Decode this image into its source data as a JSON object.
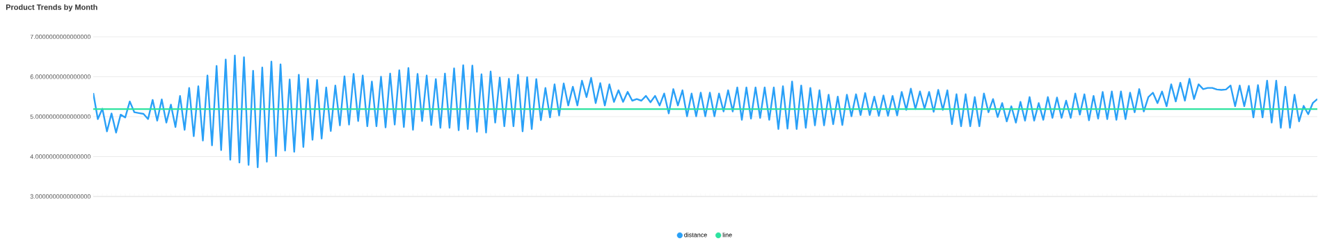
{
  "chart_data": {
    "type": "line",
    "title": "Product Trends by Month",
    "categories": [
      null,
      null,
      null,
      null,
      null,
      null,
      null,
      null,
      null,
      null,
      null,
      null,
      null,
      null,
      null,
      null,
      null,
      null,
      null,
      null,
      null,
      null,
      null,
      null,
      null,
      null,
      null,
      null,
      null,
      null,
      null,
      null,
      null,
      null,
      null,
      null,
      null,
      null,
      null,
      null,
      null,
      null,
      null,
      null,
      null,
      null,
      null,
      null,
      null,
      null,
      null,
      null,
      null,
      null,
      null,
      null,
      null,
      null,
      null,
      null,
      null,
      null,
      null,
      null,
      null,
      null,
      null,
      null,
      null,
      null,
      null,
      null,
      null,
      null,
      null,
      null,
      null,
      null,
      null,
      null,
      null,
      null,
      null,
      null,
      null,
      null,
      null,
      null,
      null,
      null,
      null,
      null,
      null,
      null,
      null,
      null,
      null,
      null,
      null,
      null,
      null,
      null,
      null,
      null,
      null,
      null,
      null,
      null,
      null,
      null,
      null,
      null,
      null,
      null,
      null,
      null,
      null,
      null,
      null,
      null,
      null,
      null,
      null,
      null,
      null,
      null,
      null,
      null,
      null,
      null,
      null,
      null,
      null,
      null,
      null,
      null,
      null,
      null,
      null,
      null,
      null,
      null,
      null,
      null,
      null,
      null,
      null,
      null,
      null,
      null,
      null,
      null,
      null,
      null,
      null,
      null,
      null,
      null,
      null,
      null,
      null,
      null,
      null,
      null,
      null,
      null,
      null,
      null,
      null,
      null,
      null,
      null,
      null,
      null,
      null,
      null,
      null,
      null,
      null,
      null,
      null,
      null,
      null,
      null,
      null,
      null,
      null,
      null,
      null,
      null,
      null,
      null,
      null,
      null,
      null,
      null,
      null,
      null,
      null,
      null,
      null,
      null,
      null,
      null,
      null,
      null,
      null,
      null,
      null,
      null,
      null,
      null,
      null,
      null,
      null,
      null,
      null,
      null,
      null,
      null,
      null,
      null,
      null,
      null,
      null,
      null,
      null,
      null,
      null,
      null,
      null,
      null,
      null,
      null,
      null,
      null,
      null,
      null,
      null,
      null,
      null,
      null,
      null,
      null,
      null,
      null,
      null,
      null,
      null,
      null,
      null,
      null,
      null,
      null,
      null,
      null,
      null,
      null,
      null,
      null,
      null,
      null,
      null,
      null,
      null,
      null,
      null,
      null,
      null
    ],
    "series": [
      {
        "name": "distance",
        "color": "#29a0f7",
        "values": [
          5.59,
          4.94,
          5.2,
          4.63,
          5.08,
          4.6,
          5.05,
          4.98,
          5.38,
          5.11,
          5.09,
          5.07,
          4.94,
          5.42,
          4.9,
          5.43,
          4.85,
          5.3,
          4.74,
          5.52,
          4.67,
          5.72,
          4.51,
          5.76,
          4.4,
          6.03,
          4.28,
          6.27,
          4.16,
          6.43,
          3.92,
          6.53,
          3.85,
          6.49,
          3.79,
          6.15,
          3.73,
          6.23,
          3.87,
          6.38,
          4.01,
          6.31,
          4.15,
          5.93,
          4.12,
          6.05,
          4.24,
          5.95,
          4.42,
          5.92,
          4.45,
          5.73,
          4.64,
          5.78,
          4.78,
          6.01,
          4.8,
          6.07,
          4.89,
          6.03,
          4.76,
          5.88,
          4.76,
          6.0,
          4.73,
          6.08,
          4.8,
          6.16,
          4.74,
          6.22,
          4.67,
          6.07,
          4.89,
          6.03,
          4.79,
          5.94,
          4.72,
          6.08,
          4.72,
          6.21,
          4.66,
          6.29,
          4.69,
          6.28,
          4.62,
          6.06,
          4.6,
          6.13,
          4.85,
          5.98,
          4.76,
          5.95,
          4.76,
          6.05,
          4.63,
          5.99,
          4.69,
          5.94,
          4.91,
          5.72,
          4.98,
          5.81,
          5.03,
          5.83,
          5.28,
          5.75,
          5.28,
          5.9,
          5.49,
          5.97,
          5.34,
          5.84,
          5.28,
          5.81,
          5.37,
          5.66,
          5.37,
          5.62,
          5.4,
          5.44,
          5.4,
          5.52,
          5.36,
          5.52,
          5.28,
          5.58,
          5.08,
          5.69,
          5.28,
          5.66,
          5.01,
          5.58,
          5.01,
          5.6,
          5.01,
          5.6,
          5.01,
          5.58,
          5.13,
          5.66,
          5.13,
          5.73,
          4.92,
          5.73,
          4.95,
          5.73,
          4.97,
          5.73,
          4.92,
          5.73,
          4.69,
          5.76,
          4.7,
          5.88,
          4.69,
          5.78,
          4.72,
          5.72,
          4.78,
          5.66,
          4.78,
          5.55,
          4.81,
          5.5,
          4.79,
          5.55,
          5.01,
          5.56,
          5.04,
          5.59,
          5.04,
          5.5,
          5.02,
          5.53,
          5.02,
          5.52,
          5.03,
          5.62,
          5.17,
          5.7,
          5.19,
          5.63,
          5.2,
          5.62,
          5.12,
          5.67,
          5.17,
          5.66,
          4.81,
          5.56,
          4.76,
          5.56,
          4.76,
          5.49,
          4.76,
          5.58,
          5.11,
          5.44,
          4.99,
          5.34,
          4.88,
          5.26,
          4.85,
          5.37,
          4.9,
          5.49,
          4.9,
          5.34,
          4.92,
          5.49,
          4.97,
          5.48,
          4.97,
          5.4,
          4.97,
          5.58,
          5.05,
          5.56,
          4.91,
          5.52,
          4.95,
          5.62,
          4.94,
          5.63,
          4.92,
          5.63,
          4.94,
          5.6,
          5.11,
          5.69,
          5.13,
          5.49,
          5.6,
          5.34,
          5.63,
          5.26,
          5.81,
          5.38,
          5.85,
          5.4,
          5.95,
          5.44,
          5.81,
          5.69,
          5.72,
          5.72,
          5.68,
          5.67,
          5.68,
          5.78,
          5.26,
          5.78,
          5.26,
          5.77,
          4.98,
          5.79,
          4.98,
          5.9,
          4.85,
          5.9,
          4.72,
          5.75,
          4.72,
          5.55,
          4.88,
          5.27,
          5.06,
          5.34,
          5.44
        ]
      },
      {
        "name": "line",
        "color": "#2de3a0",
        "values": [
          5.19,
          5.19,
          5.19,
          5.19,
          5.19,
          5.19,
          5.19,
          5.19,
          5.19,
          5.19,
          5.19,
          5.19,
          5.19,
          5.19,
          5.19,
          5.19,
          5.19,
          5.19,
          5.19,
          5.19,
          5.19,
          5.19,
          5.19,
          5.19,
          5.19,
          5.19,
          5.19,
          5.19,
          5.19,
          5.19,
          5.19,
          5.19,
          5.19,
          5.19,
          5.19,
          5.19,
          5.19,
          5.19,
          5.19,
          5.19,
          5.19,
          5.19,
          5.19,
          5.19,
          5.19,
          5.19,
          5.19,
          5.19,
          5.19,
          5.19,
          5.19,
          5.19,
          5.19,
          5.19,
          5.19,
          5.19,
          5.19,
          5.19,
          5.19,
          5.19,
          5.19,
          5.19,
          5.19,
          5.19,
          5.19,
          5.19,
          5.19,
          5.19,
          5.19,
          5.19,
          5.19,
          5.19,
          5.19,
          5.19,
          5.19,
          5.19,
          5.19,
          5.19,
          5.19,
          5.19,
          5.19,
          5.19,
          5.19,
          5.19,
          5.19,
          5.19,
          5.19,
          5.19,
          5.19,
          5.19,
          5.19,
          5.19,
          5.19,
          5.19,
          5.19,
          5.19,
          5.19,
          5.19,
          5.19,
          5.19,
          5.19,
          5.19,
          5.19,
          5.19,
          5.19,
          5.19,
          5.19,
          5.19,
          5.19,
          5.19,
          5.19,
          5.19,
          5.19,
          5.19,
          5.19,
          5.19,
          5.19,
          5.19,
          5.19,
          5.19,
          5.19,
          5.19,
          5.19,
          5.19,
          5.19,
          5.19,
          5.19,
          5.19,
          5.19,
          5.19,
          5.19,
          5.19,
          5.19,
          5.19,
          5.19,
          5.19,
          5.19,
          5.19,
          5.19,
          5.19,
          5.19,
          5.19,
          5.19,
          5.19,
          5.19,
          5.19,
          5.19,
          5.19,
          5.19,
          5.19,
          5.19,
          5.19,
          5.19,
          5.19,
          5.19,
          5.19,
          5.19,
          5.19,
          5.19,
          5.19,
          5.19,
          5.19,
          5.19,
          5.19,
          5.19,
          5.19,
          5.19,
          5.19,
          5.19,
          5.19,
          5.19,
          5.19,
          5.19,
          5.19,
          5.19,
          5.19,
          5.19,
          5.19,
          5.19,
          5.19,
          5.19,
          5.19,
          5.19,
          5.19,
          5.19,
          5.19,
          5.19,
          5.19,
          5.19,
          5.19,
          5.19,
          5.19,
          5.19,
          5.19,
          5.19,
          5.19,
          5.19,
          5.19,
          5.19,
          5.19,
          5.19,
          5.19,
          5.19,
          5.19,
          5.19,
          5.19,
          5.19,
          5.19,
          5.19,
          5.19,
          5.19,
          5.19,
          5.19,
          5.19,
          5.19,
          5.19,
          5.19,
          5.19,
          5.19,
          5.19,
          5.19,
          5.19,
          5.19,
          5.19,
          5.19,
          5.19,
          5.19,
          5.19,
          5.19,
          5.19,
          5.19,
          5.19,
          5.19,
          5.19,
          5.19,
          5.19,
          5.19,
          5.19,
          5.19,
          5.19,
          5.19,
          5.19,
          5.19,
          5.19,
          5.19,
          5.19,
          5.19,
          5.19,
          5.19,
          5.19,
          5.19,
          5.19,
          5.19,
          5.19,
          5.19,
          5.19,
          5.19,
          5.19,
          5.19,
          5.19,
          5.19,
          5.19,
          5.19,
          5.19,
          5.19,
          5.19,
          5.19,
          5.19,
          5.19
        ]
      }
    ],
    "ylim": [
      3,
      7
    ],
    "yticks": [
      {
        "value": 3,
        "label": "3.0000000000000000"
      },
      {
        "value": 4,
        "label": "4.0000000000000000"
      },
      {
        "value": 5,
        "label": "5.0000000000000000"
      },
      {
        "value": 6,
        "label": "6.0000000000000000"
      },
      {
        "value": 7,
        "label": "7.0000000000000000"
      }
    ],
    "grid": "y",
    "legend": "bottom",
    "marker": "none",
    "line_style": "solid"
  }
}
